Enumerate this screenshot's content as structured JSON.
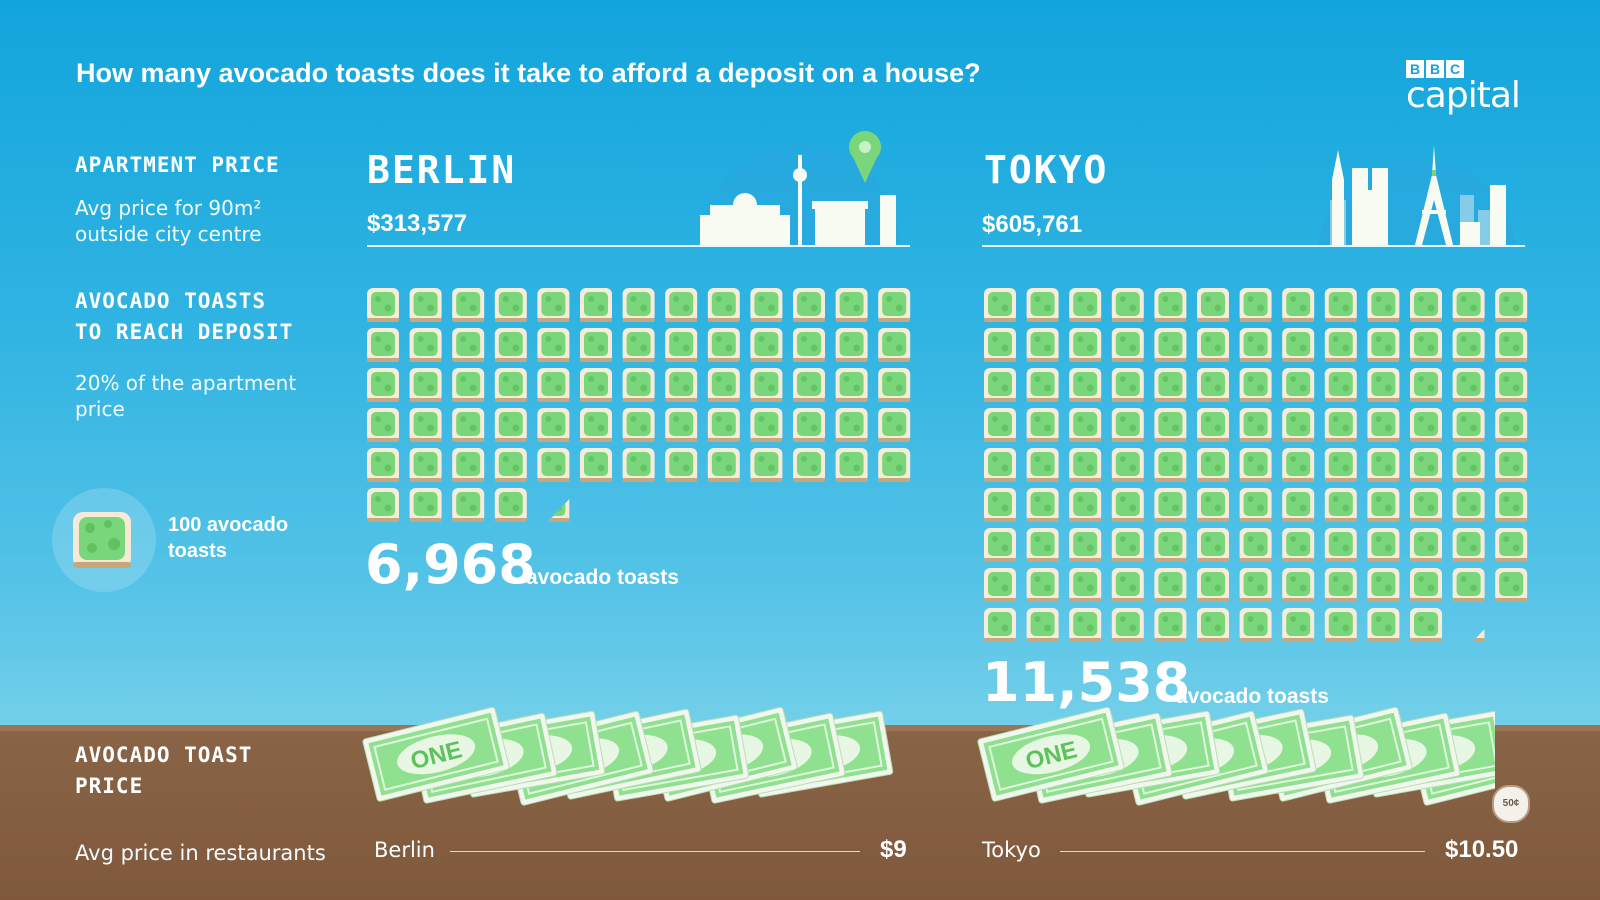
{
  "title": "How many avocado toasts does it take to afford a deposit on a house?",
  "brand": {
    "boxes": [
      "B",
      "B",
      "C"
    ],
    "word": "capital"
  },
  "labels": {
    "apartment_price": "APARTMENT PRICE",
    "apartment_sub_1": "Avg price for 90m²",
    "apartment_sub_2": "outside city centre",
    "toasts_1": "AVOCADO TOASTS",
    "toasts_2": "TO REACH DEPOSIT",
    "toasts_sub_1": "20% of the apartment",
    "toasts_sub_2": "price",
    "legend_1": "100 avocado",
    "legend_2": "toasts",
    "toast_price_1": "AVOCADO TOAST",
    "toast_price_2": "PRICE",
    "toast_price_sub": "Avg price in restaurants"
  },
  "colors": {
    "sky_top": "#12a5dc",
    "ground": "#80593c",
    "toast_green": "#7ad67a",
    "bill_green": "#8fe08f"
  },
  "chart_data": {
    "type": "pictograph",
    "unit": "100 avocado toasts",
    "cities": [
      {
        "name": "BERLIN",
        "label": "Berlin",
        "apartment_price": "$313,577",
        "apartment_price_value": 313577,
        "toasts": 6968,
        "toasts_label": "6,968",
        "toasts_suffix": "avocado toasts",
        "toast_price": "$9",
        "toast_price_value": 9
      },
      {
        "name": "TOKYO",
        "label": "Tokyo",
        "apartment_price": "$605,761",
        "apartment_price_value": 605761,
        "toasts": 11538,
        "toasts_label": "11,538",
        "toasts_suffix": "avocado toasts",
        "toast_price": "$10.50",
        "toast_price_value": 10.5,
        "coin_label": "50¢"
      }
    ]
  }
}
